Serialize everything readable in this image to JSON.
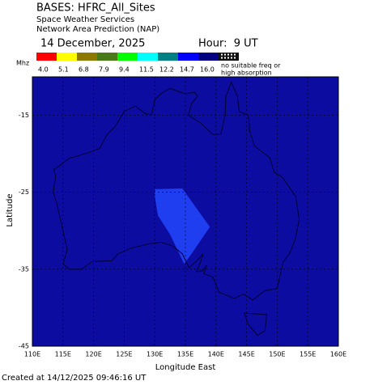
{
  "header": {
    "title": "BASES: HFRC_All_Sites",
    "line2": "Space Weather Services",
    "line3": "Network Area Prediction (NAP)",
    "date": "14 December, 2025",
    "hour": "Hour:  9 UT"
  },
  "legend": {
    "unit": "Mhz",
    "items": [
      {
        "color": "#ff0000",
        "label": "4.0"
      },
      {
        "color": "#ffff00",
        "label": "5.1"
      },
      {
        "color": "#8c7a00",
        "label": "6.8"
      },
      {
        "color": "#4a7a18",
        "label": "7.9"
      },
      {
        "color": "#00ff00",
        "label": "9.4"
      },
      {
        "color": "#00ffff",
        "label": "11.5"
      },
      {
        "color": "#008080",
        "label": "12.2"
      },
      {
        "color": "#0000ff",
        "label": "14.7"
      },
      {
        "color": "#000080",
        "label": "16.0"
      }
    ],
    "no_data": [
      "no suitable freq or",
      "high absorption"
    ]
  },
  "map": {
    "xlim": [
      110,
      160
    ],
    "ylim": [
      -45,
      -10
    ],
    "xticks": [
      {
        "value": 110,
        "label": "110E"
      },
      {
        "value": 115,
        "label": "115E"
      },
      {
        "value": 120,
        "label": "120E"
      },
      {
        "value": 125,
        "label": "125E"
      },
      {
        "value": 130,
        "label": "130E"
      },
      {
        "value": 135,
        "label": "135E"
      },
      {
        "value": 140,
        "label": "140E"
      },
      {
        "value": 145,
        "label": "145E"
      },
      {
        "value": 150,
        "label": "150E"
      },
      {
        "value": 155,
        "label": "155E"
      },
      {
        "value": 160,
        "label": "160E"
      }
    ],
    "yticks": [
      -15,
      -25,
      -35,
      -45
    ],
    "xlabel": "Longitude East",
    "ylabel": "Latitude",
    "background_color": "#0c0ca0",
    "region_color": "#1e3ef0"
  },
  "footer": "Created at 14/12/2025 09:46:16 UT"
}
